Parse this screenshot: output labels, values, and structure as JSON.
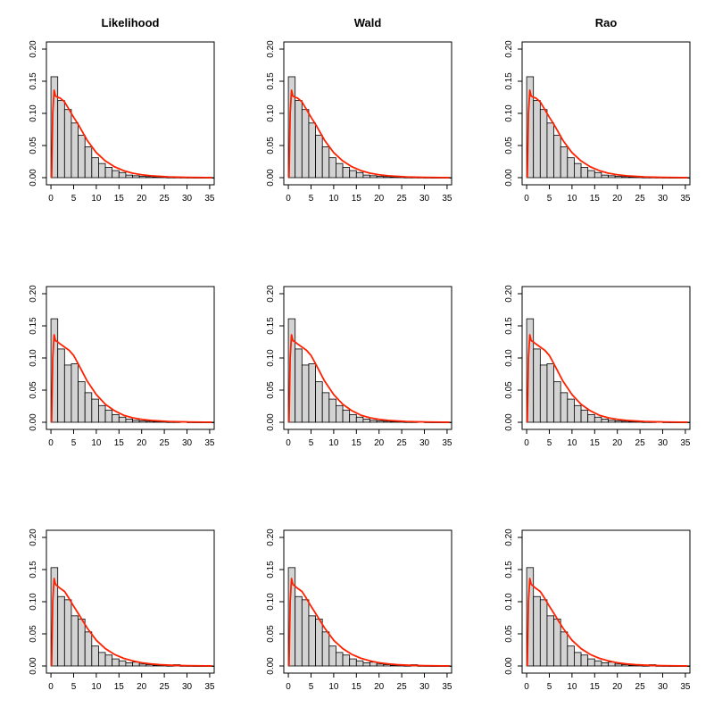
{
  "colors": {
    "bar_fill": "#d3d3d3",
    "bar_stroke": "#000000",
    "density_line": "#ff2200",
    "axis": "#000000",
    "background": "#ffffff"
  },
  "layout": {
    "rows": 3,
    "cols": 3
  },
  "column_titles": [
    "Likelihood",
    "Wald",
    "Rao"
  ],
  "chart_data": [
    {
      "type": "bar",
      "panel": "row1-likelihood",
      "title": "Likelihood",
      "bin_edges": [
        0,
        1.5,
        3,
        4.5,
        6,
        7.5,
        9,
        10.5,
        12,
        13.5,
        15,
        16.5,
        18,
        19.5,
        21,
        22.5,
        24,
        25.5,
        27,
        28.5,
        30,
        31.5,
        33,
        34.5,
        36
      ],
      "values": [
        0.157,
        0.12,
        0.106,
        0.085,
        0.066,
        0.048,
        0.031,
        0.022,
        0.016,
        0.011,
        0.008,
        0.004,
        0.003,
        0.002,
        0.0015,
        0.001,
        0.0008,
        0.0005,
        0.0004,
        0.0003,
        0.0002,
        0.0001,
        0.0001,
        0.0001
      ],
      "curve": {
        "x": [
          0.15,
          0.4,
          0.7,
          1,
          1.5,
          2,
          3,
          4,
          5,
          6,
          8,
          10,
          12,
          14,
          16,
          18,
          20,
          22,
          24,
          26,
          28,
          30,
          32,
          34,
          35.5
        ],
        "y": [
          0.0,
          0.1,
          0.136,
          0.127,
          0.125,
          0.124,
          0.118,
          0.106,
          0.094,
          0.083,
          0.058,
          0.039,
          0.026,
          0.017,
          0.011,
          0.007,
          0.0045,
          0.003,
          0.002,
          0.0012,
          0.0008,
          0.0005,
          0.0003,
          0.0002,
          0.0001
        ]
      },
      "xlim": [
        -1,
        36
      ],
      "ylim": [
        0,
        0.2
      ],
      "xticks": [
        "0",
        "5",
        "10",
        "15",
        "20",
        "25",
        "30",
        "35"
      ],
      "yticks": [
        "0.00",
        "0.05",
        "0.10",
        "0.15",
        "0.20"
      ]
    },
    {
      "type": "bar",
      "panel": "row1-wald",
      "title": "Wald",
      "bin_edges": [
        0,
        1.5,
        3,
        4.5,
        6,
        7.5,
        9,
        10.5,
        12,
        13.5,
        15,
        16.5,
        18,
        19.5,
        21,
        22.5,
        24,
        25.5,
        27,
        28.5,
        30,
        31.5,
        33,
        34.5,
        36
      ],
      "values": [
        0.157,
        0.12,
        0.106,
        0.085,
        0.066,
        0.048,
        0.031,
        0.022,
        0.016,
        0.011,
        0.008,
        0.004,
        0.003,
        0.002,
        0.0015,
        0.001,
        0.0008,
        0.0005,
        0.0004,
        0.0003,
        0.0002,
        0.0001,
        0.0001,
        0.0001
      ],
      "curve": {
        "x": [
          0.15,
          0.4,
          0.7,
          1,
          1.5,
          2,
          3,
          4,
          5,
          6,
          8,
          10,
          12,
          14,
          16,
          18,
          20,
          22,
          24,
          26,
          28,
          30,
          32,
          34,
          35.5
        ],
        "y": [
          0.0,
          0.1,
          0.136,
          0.127,
          0.125,
          0.124,
          0.118,
          0.106,
          0.094,
          0.083,
          0.058,
          0.039,
          0.026,
          0.017,
          0.011,
          0.007,
          0.0045,
          0.003,
          0.002,
          0.0012,
          0.0008,
          0.0005,
          0.0003,
          0.0002,
          0.0001
        ]
      },
      "xlim": [
        -1,
        36
      ],
      "ylim": [
        0,
        0.2
      ],
      "xticks": [
        "0",
        "5",
        "10",
        "15",
        "20",
        "25",
        "30",
        "35"
      ],
      "yticks": [
        "0.00",
        "0.05",
        "0.10",
        "0.15",
        "0.20"
      ]
    },
    {
      "type": "bar",
      "panel": "row1-rao",
      "title": "Rao",
      "bin_edges": [
        0,
        1.5,
        3,
        4.5,
        6,
        7.5,
        9,
        10.5,
        12,
        13.5,
        15,
        16.5,
        18,
        19.5,
        21,
        22.5,
        24,
        25.5,
        27,
        28.5,
        30,
        31.5,
        33,
        34.5,
        36
      ],
      "values": [
        0.157,
        0.12,
        0.106,
        0.085,
        0.066,
        0.048,
        0.031,
        0.022,
        0.016,
        0.011,
        0.008,
        0.004,
        0.003,
        0.002,
        0.0015,
        0.001,
        0.0008,
        0.0005,
        0.0004,
        0.0003,
        0.0002,
        0.0001,
        0.0001,
        0.0001
      ],
      "curve": {
        "x": [
          0.15,
          0.4,
          0.7,
          1,
          1.5,
          2,
          3,
          4,
          5,
          6,
          8,
          10,
          12,
          14,
          16,
          18,
          20,
          22,
          24,
          26,
          28,
          30,
          32,
          34,
          35.5
        ],
        "y": [
          0.0,
          0.1,
          0.136,
          0.127,
          0.125,
          0.124,
          0.118,
          0.106,
          0.094,
          0.083,
          0.058,
          0.039,
          0.026,
          0.017,
          0.011,
          0.007,
          0.0045,
          0.003,
          0.002,
          0.0012,
          0.0008,
          0.0005,
          0.0003,
          0.0002,
          0.0001
        ]
      },
      "xlim": [
        -1,
        36
      ],
      "ylim": [
        0,
        0.2
      ],
      "xticks": [
        "0",
        "5",
        "10",
        "15",
        "20",
        "25",
        "30",
        "35"
      ],
      "yticks": [
        "0.00",
        "0.05",
        "0.10",
        "0.15",
        "0.20"
      ]
    },
    {
      "type": "bar",
      "panel": "row2-likelihood",
      "title": "",
      "bin_edges": [
        0,
        1.5,
        3,
        4.5,
        6,
        7.5,
        9,
        10.5,
        12,
        13.5,
        15,
        16.5,
        18,
        19.5,
        21,
        22.5,
        24,
        25.5,
        27,
        28.5,
        30,
        31.5,
        33,
        34.5,
        36
      ],
      "values": [
        0.161,
        0.114,
        0.089,
        0.091,
        0.063,
        0.046,
        0.036,
        0.026,
        0.019,
        0.012,
        0.008,
        0.005,
        0.003,
        0.002,
        0.0015,
        0.001,
        0.0008,
        0.0005,
        0.0004,
        0.001,
        0.0002,
        0.0001,
        0.0001,
        0.0001
      ],
      "curve": {
        "x": [
          0.15,
          0.4,
          0.7,
          1,
          1.5,
          2,
          3,
          4,
          5,
          6,
          8,
          10,
          12,
          14,
          16,
          18,
          20,
          22,
          24,
          26,
          28,
          30,
          32,
          34,
          35.5
        ],
        "y": [
          0.0,
          0.1,
          0.136,
          0.127,
          0.125,
          0.122,
          0.117,
          0.112,
          0.104,
          0.091,
          0.064,
          0.043,
          0.028,
          0.018,
          0.011,
          0.007,
          0.0045,
          0.003,
          0.002,
          0.0012,
          0.0008,
          0.0005,
          0.0003,
          0.0002,
          0.0001
        ]
      },
      "xlim": [
        -1,
        36
      ],
      "ylim": [
        0,
        0.2
      ],
      "xticks": [
        "0",
        "5",
        "10",
        "15",
        "20",
        "25",
        "30",
        "35"
      ],
      "yticks": [
        "0.00",
        "0.05",
        "0.10",
        "0.15",
        "0.20"
      ]
    },
    {
      "type": "bar",
      "panel": "row2-wald",
      "title": "",
      "bin_edges": [
        0,
        1.5,
        3,
        4.5,
        6,
        7.5,
        9,
        10.5,
        12,
        13.5,
        15,
        16.5,
        18,
        19.5,
        21,
        22.5,
        24,
        25.5,
        27,
        28.5,
        30,
        31.5,
        33,
        34.5,
        36
      ],
      "values": [
        0.161,
        0.114,
        0.089,
        0.091,
        0.063,
        0.046,
        0.036,
        0.026,
        0.019,
        0.012,
        0.008,
        0.005,
        0.003,
        0.002,
        0.0015,
        0.001,
        0.0008,
        0.0005,
        0.0004,
        0.001,
        0.0002,
        0.0001,
        0.0001,
        0.0001
      ],
      "curve": {
        "x": [
          0.15,
          0.4,
          0.7,
          1,
          1.5,
          2,
          3,
          4,
          5,
          6,
          8,
          10,
          12,
          14,
          16,
          18,
          20,
          22,
          24,
          26,
          28,
          30,
          32,
          34,
          35.5
        ],
        "y": [
          0.0,
          0.1,
          0.136,
          0.127,
          0.125,
          0.122,
          0.117,
          0.112,
          0.104,
          0.091,
          0.064,
          0.043,
          0.028,
          0.018,
          0.011,
          0.007,
          0.0045,
          0.003,
          0.002,
          0.0012,
          0.0008,
          0.0005,
          0.0003,
          0.0002,
          0.0001
        ]
      },
      "xlim": [
        -1,
        36
      ],
      "ylim": [
        0,
        0.2
      ],
      "xticks": [
        "0",
        "5",
        "10",
        "15",
        "20",
        "25",
        "30",
        "35"
      ],
      "yticks": [
        "0.00",
        "0.05",
        "0.10",
        "0.15",
        "0.20"
      ]
    },
    {
      "type": "bar",
      "panel": "row2-rao",
      "title": "",
      "bin_edges": [
        0,
        1.5,
        3,
        4.5,
        6,
        7.5,
        9,
        10.5,
        12,
        13.5,
        15,
        16.5,
        18,
        19.5,
        21,
        22.5,
        24,
        25.5,
        27,
        28.5,
        30,
        31.5,
        33,
        34.5,
        36
      ],
      "values": [
        0.161,
        0.114,
        0.089,
        0.091,
        0.063,
        0.046,
        0.036,
        0.026,
        0.019,
        0.012,
        0.008,
        0.005,
        0.003,
        0.002,
        0.0015,
        0.001,
        0.0008,
        0.0005,
        0.0004,
        0.001,
        0.0002,
        0.0001,
        0.0001,
        0.0001
      ],
      "curve": {
        "x": [
          0.15,
          0.4,
          0.7,
          1,
          1.5,
          2,
          3,
          4,
          5,
          6,
          8,
          10,
          12,
          14,
          16,
          18,
          20,
          22,
          24,
          26,
          28,
          30,
          32,
          34,
          35.5
        ],
        "y": [
          0.0,
          0.1,
          0.136,
          0.127,
          0.125,
          0.122,
          0.117,
          0.112,
          0.104,
          0.091,
          0.064,
          0.043,
          0.028,
          0.018,
          0.011,
          0.007,
          0.0045,
          0.003,
          0.002,
          0.0012,
          0.0008,
          0.0005,
          0.0003,
          0.0002,
          0.0001
        ]
      },
      "xlim": [
        -1,
        36
      ],
      "ylim": [
        0,
        0.2
      ],
      "xticks": [
        "0",
        "5",
        "10",
        "15",
        "20",
        "25",
        "30",
        "35"
      ],
      "yticks": [
        "0.00",
        "0.05",
        "0.10",
        "0.15",
        "0.20"
      ]
    },
    {
      "type": "bar",
      "panel": "row3-likelihood",
      "title": "",
      "bin_edges": [
        0,
        1.5,
        3,
        4.5,
        6,
        7.5,
        9,
        10.5,
        12,
        13.5,
        15,
        16.5,
        18,
        19.5,
        21,
        22.5,
        24,
        25.5,
        27,
        28.5,
        30,
        31.5,
        33,
        34.5,
        36
      ],
      "values": [
        0.153,
        0.108,
        0.103,
        0.078,
        0.073,
        0.053,
        0.031,
        0.021,
        0.017,
        0.011,
        0.008,
        0.005,
        0.006,
        0.003,
        0.002,
        0.001,
        0.0008,
        0.0005,
        0.002,
        0.0003,
        0.0002,
        0.0001,
        0.0001,
        0.0001
      ],
      "curve": {
        "x": [
          0.15,
          0.4,
          0.7,
          1,
          1.5,
          2,
          3,
          4,
          5,
          6,
          8,
          10,
          12,
          14,
          16,
          18,
          20,
          22,
          24,
          26,
          28,
          30,
          32,
          34,
          35.5
        ],
        "y": [
          0.0,
          0.1,
          0.136,
          0.127,
          0.124,
          0.121,
          0.116,
          0.105,
          0.093,
          0.082,
          0.059,
          0.04,
          0.027,
          0.018,
          0.012,
          0.008,
          0.005,
          0.0032,
          0.002,
          0.0013,
          0.0008,
          0.0005,
          0.0003,
          0.0002,
          0.0001
        ]
      },
      "xlim": [
        -1,
        36
      ],
      "ylim": [
        0,
        0.2
      ],
      "xticks": [
        "0",
        "5",
        "10",
        "15",
        "20",
        "25",
        "30",
        "35"
      ],
      "yticks": [
        "0.00",
        "0.05",
        "0.10",
        "0.15",
        "0.20"
      ]
    },
    {
      "type": "bar",
      "panel": "row3-wald",
      "title": "",
      "bin_edges": [
        0,
        1.5,
        3,
        4.5,
        6,
        7.5,
        9,
        10.5,
        12,
        13.5,
        15,
        16.5,
        18,
        19.5,
        21,
        22.5,
        24,
        25.5,
        27,
        28.5,
        30,
        31.5,
        33,
        34.5,
        36
      ],
      "values": [
        0.153,
        0.108,
        0.103,
        0.078,
        0.073,
        0.053,
        0.031,
        0.021,
        0.017,
        0.011,
        0.008,
        0.005,
        0.006,
        0.003,
        0.002,
        0.001,
        0.0008,
        0.0005,
        0.002,
        0.0003,
        0.0002,
        0.0001,
        0.0001,
        0.0001
      ],
      "curve": {
        "x": [
          0.15,
          0.4,
          0.7,
          1,
          1.5,
          2,
          3,
          4,
          5,
          6,
          8,
          10,
          12,
          14,
          16,
          18,
          20,
          22,
          24,
          26,
          28,
          30,
          32,
          34,
          35.5
        ],
        "y": [
          0.0,
          0.1,
          0.136,
          0.127,
          0.124,
          0.121,
          0.116,
          0.105,
          0.093,
          0.082,
          0.059,
          0.04,
          0.027,
          0.018,
          0.012,
          0.008,
          0.005,
          0.0032,
          0.002,
          0.0013,
          0.0008,
          0.0005,
          0.0003,
          0.0002,
          0.0001
        ]
      },
      "xlim": [
        -1,
        36
      ],
      "ylim": [
        0,
        0.2
      ],
      "xticks": [
        "0",
        "5",
        "10",
        "15",
        "20",
        "25",
        "30",
        "35"
      ],
      "yticks": [
        "0.00",
        "0.05",
        "0.10",
        "0.15",
        "0.20"
      ]
    },
    {
      "type": "bar",
      "panel": "row3-rao",
      "title": "",
      "bin_edges": [
        0,
        1.5,
        3,
        4.5,
        6,
        7.5,
        9,
        10.5,
        12,
        13.5,
        15,
        16.5,
        18,
        19.5,
        21,
        22.5,
        24,
        25.5,
        27,
        28.5,
        30,
        31.5,
        33,
        34.5,
        36
      ],
      "values": [
        0.153,
        0.108,
        0.103,
        0.078,
        0.073,
        0.053,
        0.031,
        0.021,
        0.017,
        0.011,
        0.008,
        0.005,
        0.006,
        0.003,
        0.002,
        0.001,
        0.0008,
        0.0005,
        0.002,
        0.0003,
        0.0002,
        0.0001,
        0.0001,
        0.0001
      ],
      "curve": {
        "x": [
          0.15,
          0.4,
          0.7,
          1,
          1.5,
          2,
          3,
          4,
          5,
          6,
          8,
          10,
          12,
          14,
          16,
          18,
          20,
          22,
          24,
          26,
          28,
          30,
          32,
          34,
          35.5
        ],
        "y": [
          0.0,
          0.1,
          0.136,
          0.127,
          0.124,
          0.121,
          0.116,
          0.105,
          0.093,
          0.082,
          0.059,
          0.04,
          0.027,
          0.018,
          0.012,
          0.008,
          0.005,
          0.0032,
          0.002,
          0.0013,
          0.0008,
          0.0005,
          0.0003,
          0.0002,
          0.0001
        ]
      },
      "xlim": [
        -1,
        36
      ],
      "ylim": [
        0,
        0.2
      ],
      "xticks": [
        "0",
        "5",
        "10",
        "15",
        "20",
        "25",
        "30",
        "35"
      ],
      "yticks": [
        "0.00",
        "0.05",
        "0.10",
        "0.15",
        "0.20"
      ]
    }
  ]
}
